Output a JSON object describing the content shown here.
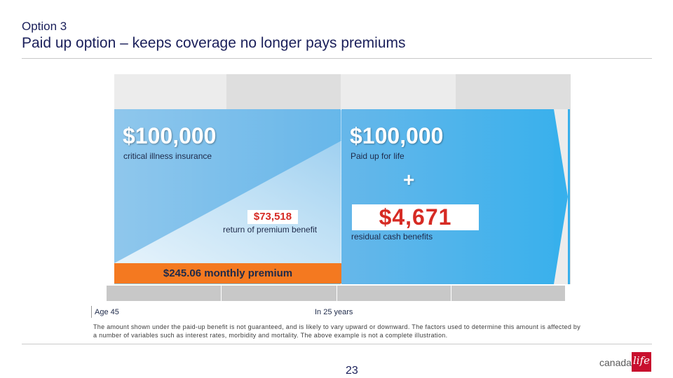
{
  "header": {
    "kicker": "Option 3",
    "title": "Paid up option – keeps coverage no longer pays premiums"
  },
  "illustration": {
    "left_amount": "$100,000",
    "left_caption": "critical illness insurance",
    "right_amount": "$100,000",
    "right_caption": "Paid up for life",
    "plus_sign": "+",
    "return_of_premium_amount": "$73,518",
    "return_of_premium_label": "return of premium benefit",
    "residual_amount": "$4,671",
    "residual_label": "residual cash benefits",
    "premium_bar": "$245.06 monthly premium",
    "watermark": "",
    "colors": {
      "blue_light": "#8fc7ec",
      "blue_dark": "#37b0ec",
      "orange": "#f47920",
      "red": "#d62b24"
    }
  },
  "timeline": {
    "start_label": "Age 45",
    "end_label": "In 25 years"
  },
  "disclaimer": "The amount shown under the paid-up benefit is not guaranteed, and is likely to vary upward or downward. The factors used to determine this amount is affected by a number of variables such as interest rates, morbidity and mortality. The above example is not a complete illustration.",
  "footer": {
    "page_number": "23",
    "logo_text": "canada",
    "logo_badge": "life"
  }
}
